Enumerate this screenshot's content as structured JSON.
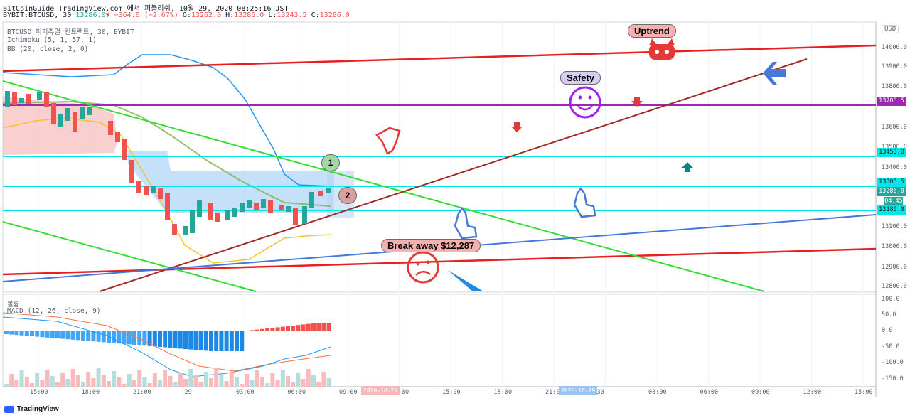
{
  "header": {
    "line1": "BitCoinGuide TradingView.com 에서 퍼블리쉬, 10월 29, 2020 08:25:16 JST",
    "symbol": "BYBIT:BTCUSD, 30",
    "last": "13286.0",
    "change": "▼ −364.0 (−2.67%)",
    "o_label": "O:",
    "o": "13262.0",
    "h_label": "H:",
    "h": "13286.0",
    "l_label": "L:",
    "l": "13243.5",
    "c_label": "C:",
    "c": "13286.0"
  },
  "legend": {
    "title": "BTCUSD 퍼피츄얼 컨트랙트, 30, BYBIT",
    "ichimoku": "Ichimoku (5, 1, 57, 1)",
    "bb": "BB (20, close, 2, 0)",
    "volume": "볼륨",
    "macd": "MACD (12, 26, close, 9)"
  },
  "currency_button": "USD",
  "price_axis": [
    "14000.0",
    "13900.0",
    "13800.0",
    "13600.0",
    "13500.0",
    "13400.0",
    "13100.0",
    "13000.0",
    "12900.0",
    "12800.0"
  ],
  "price_tags": [
    {
      "text": "13708.5",
      "bg": "#9c27b0",
      "fg": "#ffffff"
    },
    {
      "text": "13453.0",
      "bg": "#00e5e5",
      "fg": "#131722"
    },
    {
      "text": "13303.5",
      "bg": "#00e5e5",
      "fg": "#131722"
    },
    {
      "text": "13286.0",
      "bg": "#26a69a",
      "fg": "#ffffff"
    },
    {
      "text": "04:45",
      "bg": "#26a69a",
      "fg": "#ffffff"
    },
    {
      "text": "13186.0",
      "bg": "#00e5e5",
      "fg": "#131722"
    }
  ],
  "macd_axis": [
    "100.0",
    "50.0",
    "0.0",
    "-50.0",
    "-100.0",
    "-150.0"
  ],
  "time_axis": [
    "15:00",
    "18:00",
    "21:00",
    "29",
    "03:00",
    "06:00",
    "09:00",
    "12:00",
    "15:00",
    "18:00",
    "21:00",
    "30",
    "03:00",
    "06:00",
    "09:00",
    "12:00",
    "15:00"
  ],
  "time_range_boxes": [
    "2020-10-29",
    "2020-10-29"
  ],
  "annotations": {
    "uptrend": "Uptrend",
    "safety": "Safety",
    "break_away": "Break away $12,287",
    "one": "1",
    "two": "2"
  },
  "footer": {
    "brand": "TradingView"
  },
  "colors": {
    "up": "#26a69a",
    "down": "#ef5350",
    "purple": "#9c27b0",
    "cyan": "#00e5e5",
    "red": "#e91e1e",
    "green": "#33dd33",
    "brown": "#a52a2a",
    "blue": "#4477dd"
  }
}
